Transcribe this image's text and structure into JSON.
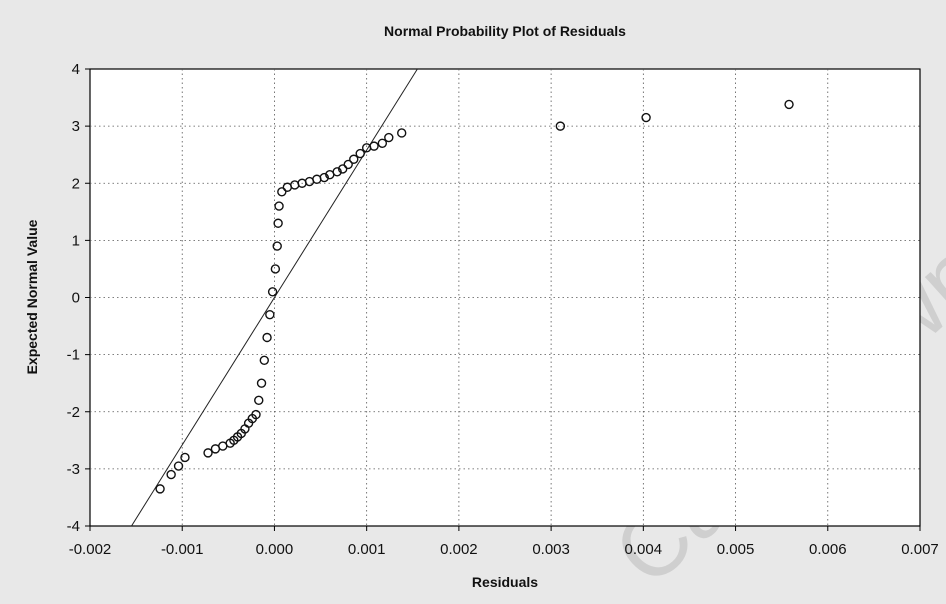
{
  "chart_data": {
    "type": "scatter",
    "title": "Normal Probability Plot of Residuals",
    "xlabel": "Residuals",
    "ylabel": "Expected Normal Value",
    "xlim": [
      -0.002,
      0.007
    ],
    "ylim": [
      -4,
      4
    ],
    "x_ticks": [
      "-0.002",
      "-0.001",
      "0.000",
      "0.001",
      "0.002",
      "0.003",
      "0.004",
      "0.005",
      "0.006",
      "0.007"
    ],
    "y_ticks": [
      "-4",
      "-3",
      "-2",
      "-1",
      "0",
      "1",
      "2",
      "3",
      "4"
    ],
    "grid": true,
    "legend": "none",
    "watermark": "Cape Town",
    "reference_line": {
      "x": [
        -0.00155,
        0.00155
      ],
      "y": [
        -4.0,
        4.0
      ]
    },
    "series": [
      {
        "marker": "open-circle",
        "points": [
          [
            -0.00124,
            -3.35
          ],
          [
            -0.00112,
            -3.1
          ],
          [
            -0.00104,
            -2.95
          ],
          [
            -0.00097,
            -2.8
          ],
          [
            -0.00072,
            -2.72
          ],
          [
            -0.00064,
            -2.65
          ],
          [
            -0.00056,
            -2.6
          ],
          [
            -0.00048,
            -2.55
          ],
          [
            -0.00044,
            -2.5
          ],
          [
            -0.0004,
            -2.44
          ],
          [
            -0.00036,
            -2.38
          ],
          [
            -0.00032,
            -2.3
          ],
          [
            -0.00028,
            -2.2
          ],
          [
            -0.00024,
            -2.12
          ],
          [
            -0.0002,
            -2.05
          ],
          [
            -0.00017,
            -1.8
          ],
          [
            -0.00014,
            -1.5
          ],
          [
            -0.00011,
            -1.1
          ],
          [
            -8e-05,
            -0.7
          ],
          [
            -5e-05,
            -0.3
          ],
          [
            -2e-05,
            0.1
          ],
          [
            1e-05,
            0.5
          ],
          [
            3e-05,
            0.9
          ],
          [
            4e-05,
            1.3
          ],
          [
            5e-05,
            1.6
          ],
          [
            8e-05,
            1.85
          ],
          [
            0.00014,
            1.93
          ],
          [
            0.00022,
            1.97
          ],
          [
            0.0003,
            2.0
          ],
          [
            0.00038,
            2.03
          ],
          [
            0.00046,
            2.07
          ],
          [
            0.00054,
            2.1
          ],
          [
            0.0006,
            2.15
          ],
          [
            0.00068,
            2.2
          ],
          [
            0.00074,
            2.25
          ],
          [
            0.0008,
            2.33
          ],
          [
            0.00086,
            2.42
          ],
          [
            0.00093,
            2.52
          ],
          [
            0.001,
            2.62
          ],
          [
            0.00108,
            2.65
          ],
          [
            0.00117,
            2.7
          ],
          [
            0.00124,
            2.8
          ],
          [
            0.00138,
            2.88
          ],
          [
            0.0031,
            3.0
          ],
          [
            0.00403,
            3.15
          ],
          [
            0.00558,
            3.38
          ]
        ]
      }
    ]
  }
}
